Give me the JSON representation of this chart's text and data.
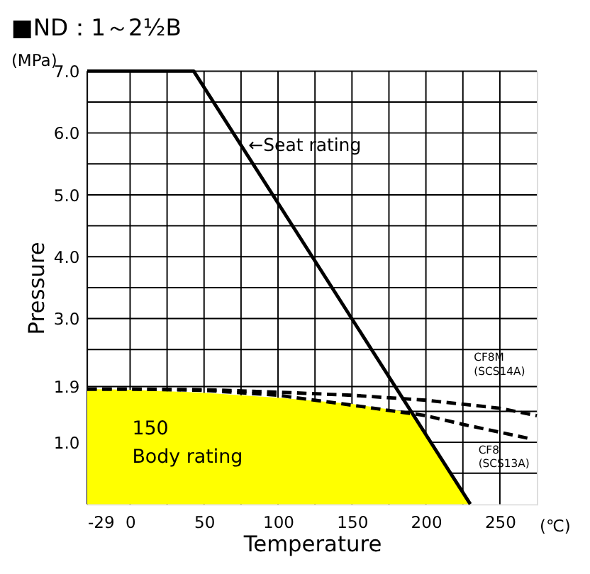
{
  "chart_data": {
    "type": "line",
    "title": "■ND：1～2½B",
    "xlabel": "Temperature",
    "ylabel": "Pressure",
    "xlim": [
      -29,
      275
    ],
    "ylim": [
      0,
      7
    ],
    "xticks": [
      -29,
      0,
      {
        "value": 25,
        "label": null
      },
      50,
      {
        "value": 75,
        "label": null
      },
      100,
      {
        "value": 125,
        "label": null
      },
      150,
      {
        "value": 175,
        "label": null
      },
      200,
      {
        "value": 225,
        "label": null
      },
      250
    ],
    "yticks": [
      {
        "value": 0.5,
        "label": null
      },
      {
        "value": 1,
        "label": "1.0"
      },
      {
        "value": 1.5,
        "label": null
      },
      1.9,
      {
        "value": 2.5,
        "label": null
      },
      {
        "value": 3,
        "label": "3.0"
      },
      {
        "value": 3.5,
        "label": null
      },
      {
        "value": 4,
        "label": "4.0"
      },
      {
        "value": 4.5,
        "label": null
      },
      {
        "value": 5,
        "label": "5.0"
      },
      {
        "value": 5.5,
        "label": null
      },
      {
        "value": 6,
        "label": "6.0"
      },
      {
        "value": 6.5,
        "label": null
      },
      {
        "value": 7,
        "label": "7.0"
      }
    ],
    "grid": true,
    "series": [
      {
        "type": "area",
        "color": "#ffff00",
        "x": [
          -29,
          0,
          50,
          100,
          150,
          190,
          230
        ],
        "values": [
          1.86,
          1.85,
          1.8,
          1.72,
          1.62,
          1.48,
          0
        ]
      },
      {
        "color": "#000000",
        "line_style": "dashed",
        "x": [
          -29,
          0,
          50,
          100,
          150,
          200,
          250,
          275
        ],
        "values": [
          1.86,
          1.86,
          1.85,
          1.81,
          1.76,
          1.68,
          1.55,
          1.43
        ]
      },
      {
        "color": "#000000",
        "line_style": "dashed",
        "x": [
          -29,
          0,
          50,
          100,
          150,
          200,
          225,
          270
        ],
        "values": [
          1.86,
          1.86,
          1.84,
          1.76,
          1.6,
          1.43,
          1.29,
          1.06
        ]
      },
      {
        "color": "#000000",
        "line_style": "solid",
        "x": [
          -29,
          43,
          230
        ],
        "values": [
          7,
          7,
          0
        ]
      }
    ],
    "annotations": [
      "(MPa)",
      "(℃)",
      {
        "text": "←Seat rating",
        "x": 80,
        "y": 5.8
      },
      "CF8M\n(SCS14A)",
      "CF8\n(SCS13A)",
      "150\nBody rating"
    ]
  }
}
